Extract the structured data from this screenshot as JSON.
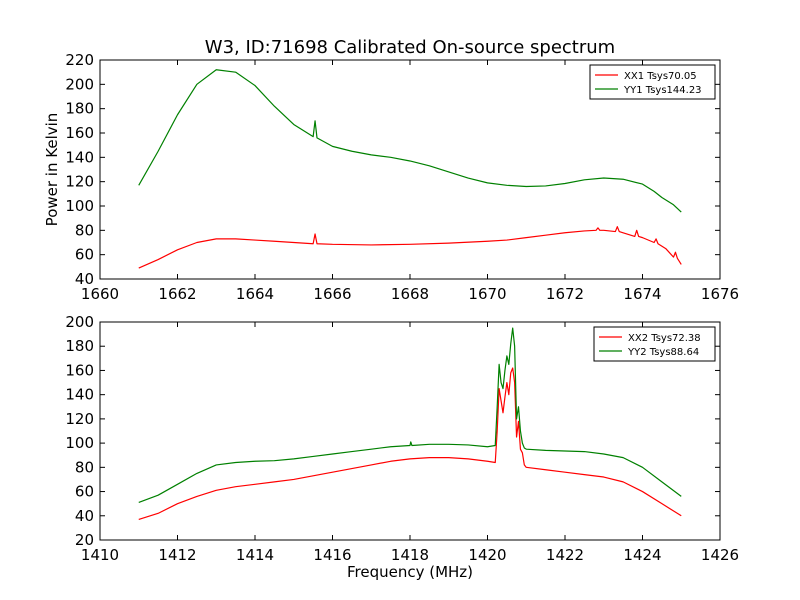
{
  "title": "W3, ID:71698 Calibrated On-source spectrum",
  "colors": {
    "red": "#ff0000",
    "green": "#008000"
  },
  "chart_data": [
    {
      "type": "line",
      "xlabel": "",
      "ylabel": "Power in Kelvin",
      "xlim": [
        1660,
        1676
      ],
      "ylim": [
        40,
        220
      ],
      "xticks": [
        1660,
        1662,
        1664,
        1666,
        1668,
        1670,
        1672,
        1674,
        1676
      ],
      "yticks": [
        40,
        60,
        80,
        100,
        120,
        140,
        160,
        180,
        200,
        220
      ],
      "legend_position": "top-right",
      "series": [
        {
          "name": "XX1 Tsys70.05",
          "color": "#ff0000",
          "points": [
            [
              1661,
              49
            ],
            [
              1661.5,
              56
            ],
            [
              1662,
              64
            ],
            [
              1662.5,
              70
            ],
            [
              1663,
              73
            ],
            [
              1663.5,
              73
            ],
            [
              1664,
              72
            ],
            [
              1664.5,
              71
            ],
            [
              1665,
              70
            ],
            [
              1665.5,
              69
            ],
            [
              1665.55,
              77
            ],
            [
              1665.6,
              69
            ],
            [
              1666,
              68.5
            ],
            [
              1667,
              68
            ],
            [
              1668,
              68.5
            ],
            [
              1669,
              69.5
            ],
            [
              1670,
              71
            ],
            [
              1670.5,
              72
            ],
            [
              1671,
              74
            ],
            [
              1671.5,
              76
            ],
            [
              1672,
              78
            ],
            [
              1672.5,
              79.5
            ],
            [
              1672.8,
              80
            ],
            [
              1672.85,
              82
            ],
            [
              1672.9,
              80
            ],
            [
              1673,
              80
            ],
            [
              1673.3,
              79
            ],
            [
              1673.35,
              83
            ],
            [
              1673.4,
              79
            ],
            [
              1673.5,
              78
            ],
            [
              1673.8,
              75
            ],
            [
              1673.85,
              80
            ],
            [
              1673.9,
              75
            ],
            [
              1674,
              74
            ],
            [
              1674.3,
              70
            ],
            [
              1674.35,
              73
            ],
            [
              1674.4,
              69
            ],
            [
              1674.6,
              65
            ],
            [
              1674.8,
              58
            ],
            [
              1674.85,
              62
            ],
            [
              1674.9,
              57
            ],
            [
              1675,
              52
            ]
          ]
        },
        {
          "name": "YY1 Tsys144.23",
          "color": "#008000",
          "points": [
            [
              1661,
              117
            ],
            [
              1661.5,
              145
            ],
            [
              1662,
              175
            ],
            [
              1662.5,
              200
            ],
            [
              1663,
              212
            ],
            [
              1663.5,
              210
            ],
            [
              1664,
              199
            ],
            [
              1664.5,
              182
            ],
            [
              1665,
              167
            ],
            [
              1665.5,
              157
            ],
            [
              1665.55,
              170
            ],
            [
              1665.6,
              156
            ],
            [
              1666,
              149
            ],
            [
              1666.5,
              145
            ],
            [
              1667,
              142
            ],
            [
              1667.5,
              140
            ],
            [
              1668,
              137
            ],
            [
              1668.5,
              133
            ],
            [
              1669,
              128
            ],
            [
              1669.5,
              123
            ],
            [
              1670,
              119
            ],
            [
              1670.5,
              117
            ],
            [
              1671,
              116
            ],
            [
              1671.5,
              116.5
            ],
            [
              1672,
              118.5
            ],
            [
              1672.5,
              121.5
            ],
            [
              1673,
              123
            ],
            [
              1673.5,
              122
            ],
            [
              1674,
              118
            ],
            [
              1674.3,
              112
            ],
            [
              1674.5,
              107
            ],
            [
              1674.8,
              101
            ],
            [
              1675,
              95
            ]
          ]
        }
      ]
    },
    {
      "type": "line",
      "xlabel": "Frequency (MHz)",
      "ylabel": "",
      "xlim": [
        1410,
        1426
      ],
      "ylim": [
        20,
        200
      ],
      "xticks": [
        1410,
        1412,
        1414,
        1416,
        1418,
        1420,
        1422,
        1424,
        1426
      ],
      "yticks": [
        20,
        40,
        60,
        80,
        100,
        120,
        140,
        160,
        180,
        200
      ],
      "legend_position": "top-right",
      "series": [
        {
          "name": "XX2 Tsys72.38",
          "color": "#ff0000",
          "points": [
            [
              1411,
              37
            ],
            [
              1411.5,
              42
            ],
            [
              1412,
              50
            ],
            [
              1412.5,
              56
            ],
            [
              1413,
              61
            ],
            [
              1413.5,
              64
            ],
            [
              1414,
              66
            ],
            [
              1414.5,
              68
            ],
            [
              1415,
              70
            ],
            [
              1415.5,
              73
            ],
            [
              1416,
              76
            ],
            [
              1416.5,
              79
            ],
            [
              1417,
              82
            ],
            [
              1417.5,
              85
            ],
            [
              1418,
              87
            ],
            [
              1418.5,
              88
            ],
            [
              1419,
              88
            ],
            [
              1419.5,
              87
            ],
            [
              1420,
              85
            ],
            [
              1420.2,
              84
            ],
            [
              1420.25,
              110
            ],
            [
              1420.3,
              145
            ],
            [
              1420.35,
              135
            ],
            [
              1420.4,
              125
            ],
            [
              1420.45,
              138
            ],
            [
              1420.5,
              150
            ],
            [
              1420.55,
              140
            ],
            [
              1420.6,
              158
            ],
            [
              1420.65,
              162
            ],
            [
              1420.7,
              150
            ],
            [
              1420.75,
              105
            ],
            [
              1420.8,
              118
            ],
            [
              1420.85,
              95
            ],
            [
              1420.9,
              92
            ],
            [
              1420.95,
              82
            ],
            [
              1421,
              80
            ],
            [
              1421.5,
              78
            ],
            [
              1422,
              76
            ],
            [
              1422.5,
              74
            ],
            [
              1423,
              72
            ],
            [
              1423.5,
              68
            ],
            [
              1424,
              60
            ],
            [
              1424.5,
              50
            ],
            [
              1425,
              40
            ]
          ]
        },
        {
          "name": "YY2 Tsys88.64",
          "color": "#008000",
          "points": [
            [
              1411,
              51
            ],
            [
              1411.5,
              57
            ],
            [
              1412,
              66
            ],
            [
              1412.5,
              75
            ],
            [
              1413,
              82
            ],
            [
              1413.5,
              84
            ],
            [
              1414,
              85
            ],
            [
              1414.5,
              85.5
            ],
            [
              1415,
              87
            ],
            [
              1415.5,
              89
            ],
            [
              1416,
              91
            ],
            [
              1416.5,
              93
            ],
            [
              1417,
              95
            ],
            [
              1417.5,
              97
            ],
            [
              1418,
              98
            ],
            [
              1418.02,
              101
            ],
            [
              1418.05,
              98
            ],
            [
              1418.5,
              99
            ],
            [
              1419,
              99
            ],
            [
              1419.5,
              98.5
            ],
            [
              1420,
              97
            ],
            [
              1420.2,
              98
            ],
            [
              1420.25,
              130
            ],
            [
              1420.3,
              165
            ],
            [
              1420.35,
              150
            ],
            [
              1420.4,
              145
            ],
            [
              1420.45,
              160
            ],
            [
              1420.5,
              172
            ],
            [
              1420.55,
              165
            ],
            [
              1420.6,
              182
            ],
            [
              1420.65,
              195
            ],
            [
              1420.7,
              180
            ],
            [
              1420.75,
              120
            ],
            [
              1420.8,
              130
            ],
            [
              1420.85,
              110
            ],
            [
              1420.9,
              100
            ],
            [
              1420.95,
              96
            ],
            [
              1421,
              95
            ],
            [
              1421.5,
              94
            ],
            [
              1422,
              93.5
            ],
            [
              1422.5,
              93
            ],
            [
              1423,
              91
            ],
            [
              1423.5,
              88
            ],
            [
              1424,
              80
            ],
            [
              1424.5,
              68
            ],
            [
              1425,
              56
            ]
          ]
        }
      ]
    }
  ]
}
